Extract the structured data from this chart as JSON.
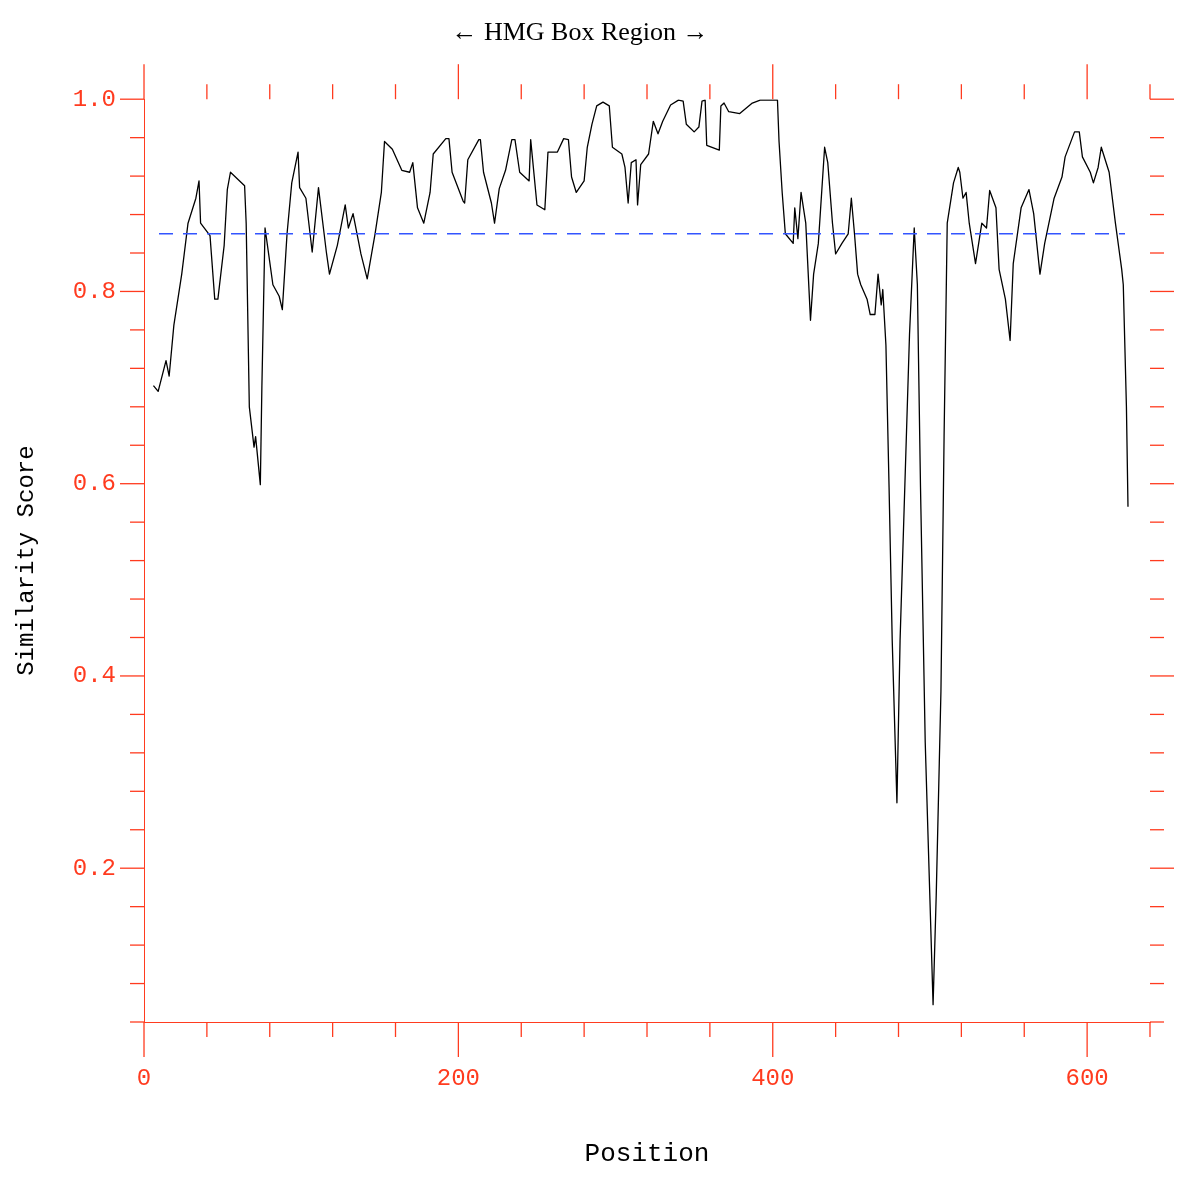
{
  "chart_data": {
    "type": "line",
    "title": "← HMG Box Region →",
    "xlabel": "Position",
    "ylabel": "Similarity Score",
    "xlim": [
      0,
      640
    ],
    "ylim": [
      0.04,
      1.0
    ],
    "xticks": [
      0,
      {
        "value": 40,
        "label": null
      },
      {
        "value": 80,
        "label": null
      },
      {
        "value": 120,
        "label": null
      },
      {
        "value": 160,
        "label": null
      },
      200,
      {
        "value": 240,
        "label": null
      },
      {
        "value": 280,
        "label": null
      },
      {
        "value": 320,
        "label": null
      },
      {
        "value": 360,
        "label": null
      },
      400,
      {
        "value": 440,
        "label": null
      },
      {
        "value": 480,
        "label": null
      },
      {
        "value": 520,
        "label": null
      },
      {
        "value": 560,
        "label": null
      },
      600,
      {
        "value": 640,
        "label": null
      }
    ],
    "yticks": [
      {
        "value": 0.04,
        "label": null
      },
      {
        "value": 0.08,
        "label": null
      },
      {
        "value": 0.12,
        "label": null
      },
      {
        "value": 0.16,
        "label": null
      },
      0.2,
      {
        "value": 0.24,
        "label": null
      },
      {
        "value": 0.28,
        "label": null
      },
      {
        "value": 0.32,
        "label": null
      },
      {
        "value": 0.36,
        "label": null
      },
      0.4,
      {
        "value": 0.44,
        "label": null
      },
      {
        "value": 0.48,
        "label": null
      },
      {
        "value": 0.52,
        "label": null
      },
      {
        "value": 0.56,
        "label": null
      },
      0.6,
      {
        "value": 0.64,
        "label": null
      },
      {
        "value": 0.68,
        "label": null
      },
      {
        "value": 0.72,
        "label": null
      },
      {
        "value": 0.76,
        "label": null
      },
      0.8,
      {
        "value": 0.84,
        "label": null
      },
      {
        "value": 0.88,
        "label": null
      },
      {
        "value": 0.92,
        "label": null
      },
      {
        "value": 0.96,
        "label": null
      },
      {
        "value": 1,
        "label": "1.0"
      }
    ],
    "grid": false,
    "legend": false,
    "marker": "none",
    "line_style": "solid",
    "ref_lines": [
      {
        "axis": "y",
        "value": 0.86,
        "color": "#3355ff",
        "line_style": "dashed"
      }
    ],
    "series": [
      {
        "color": "#000000",
        "x": [
          6,
          9,
          14,
          16,
          19,
          24,
          28,
          33,
          35,
          36,
          42,
          45,
          47,
          51,
          53,
          55,
          64,
          65,
          67,
          70,
          71,
          74,
          75,
          77,
          82,
          86,
          88,
          91,
          94,
          98,
          99,
          103,
          107,
          111,
          116,
          118,
          123,
          128,
          130,
          133,
          138,
          142,
          147,
          151,
          153,
          158,
          164,
          169,
          171,
          174,
          178,
          182,
          184,
          192,
          194,
          196,
          203,
          204,
          206,
          213,
          214,
          216,
          221,
          223,
          226,
          230,
          234,
          236,
          239,
          245,
          246,
          250,
          255,
          257,
          263,
          267,
          270,
          272,
          275,
          280,
          282,
          285,
          288,
          292,
          296,
          298,
          304,
          306,
          308,
          310,
          313,
          314,
          316,
          321,
          324,
          327,
          330,
          335,
          340,
          343,
          345,
          350,
          353,
          355,
          357,
          358,
          366,
          367,
          369,
          372,
          379,
          387,
          392,
          403,
          404,
          406,
          408,
          413,
          414,
          416,
          418,
          421,
          424,
          426,
          429,
          433,
          435,
          438,
          440,
          444,
          448,
          450,
          452,
          454,
          456,
          460,
          462,
          465,
          467,
          469,
          470,
          472,
          474,
          476,
          479,
          481,
          484,
          487,
          490,
          492,
          494,
          497,
          502,
          504,
          507,
          509,
          511,
          515,
          518,
          519,
          521,
          523,
          525,
          529,
          533,
          536,
          538,
          542,
          544,
          548,
          551,
          553,
          558,
          563,
          566,
          570,
          573,
          579,
          584,
          586,
          592,
          595,
          597,
          602,
          604,
          607,
          609,
          614,
          618,
          622,
          623,
          625,
          626
        ],
        "values": [
          0.702,
          0.696,
          0.728,
          0.712,
          0.765,
          0.818,
          0.871,
          0.897,
          0.915,
          0.871,
          0.858,
          0.792,
          0.792,
          0.848,
          0.906,
          0.924,
          0.91,
          0.871,
          0.68,
          0.638,
          0.649,
          0.599,
          0.702,
          0.866,
          0.807,
          0.795,
          0.781,
          0.86,
          0.913,
          0.945,
          0.908,
          0.897,
          0.841,
          0.908,
          0.841,
          0.818,
          0.848,
          0.89,
          0.866,
          0.881,
          0.839,
          0.813,
          0.86,
          0.903,
          0.956,
          0.948,
          0.926,
          0.924,
          0.934,
          0.887,
          0.871,
          0.903,
          0.943,
          0.959,
          0.959,
          0.924,
          0.894,
          0.892,
          0.937,
          0.958,
          0.958,
          0.924,
          0.892,
          0.871,
          0.907,
          0.926,
          0.958,
          0.958,
          0.924,
          0.915,
          0.958,
          0.89,
          0.885,
          0.945,
          0.945,
          0.959,
          0.958,
          0.919,
          0.903,
          0.915,
          0.95,
          0.974,
          0.993,
          0.997,
          0.993,
          0.95,
          0.943,
          0.929,
          0.892,
          0.934,
          0.937,
          0.89,
          0.932,
          0.943,
          0.977,
          0.964,
          0.977,
          0.994,
          0.999,
          0.998,
          0.974,
          0.966,
          0.971,
          0.998,
          0.999,
          0.952,
          0.947,
          0.993,
          0.996,
          0.987,
          0.985,
          0.996,
          0.999,
          0.999,
          0.956,
          0.903,
          0.86,
          0.85,
          0.887,
          0.855,
          0.903,
          0.871,
          0.77,
          0.818,
          0.85,
          0.95,
          0.934,
          0.871,
          0.839,
          0.85,
          0.86,
          0.897,
          0.86,
          0.818,
          0.807,
          0.792,
          0.776,
          0.776,
          0.818,
          0.786,
          0.802,
          0.744,
          0.596,
          0.437,
          0.268,
          0.437,
          0.596,
          0.755,
          0.866,
          0.807,
          0.596,
          0.331,
          0.058,
          0.172,
          0.384,
          0.649,
          0.871,
          0.913,
          0.929,
          0.924,
          0.897,
          0.903,
          0.871,
          0.829,
          0.871,
          0.866,
          0.905,
          0.887,
          0.823,
          0.792,
          0.749,
          0.829,
          0.887,
          0.906,
          0.881,
          0.818,
          0.85,
          0.897,
          0.919,
          0.94,
          0.966,
          0.966,
          0.94,
          0.924,
          0.913,
          0.929,
          0.95,
          0.924,
          0.871,
          0.823,
          0.807,
          0.68,
          0.576
        ]
      }
    ]
  }
}
